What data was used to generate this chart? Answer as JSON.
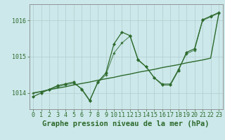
{
  "bg_color": "#cce8ea",
  "line_color": "#2d6a2d",
  "grid_color": "#b0cccc",
  "xlabel": "Graphe pression niveau de la mer (hPa)",
  "xlabel_fontsize": 7.5,
  "tick_fontsize": 6,
  "xlim": [
    -0.5,
    23.5
  ],
  "ylim": [
    1013.55,
    1016.45
  ],
  "yticks": [
    1014,
    1015,
    1016
  ],
  "xticks": [
    0,
    1,
    2,
    3,
    4,
    5,
    6,
    7,
    8,
    9,
    10,
    11,
    12,
    13,
    14,
    15,
    16,
    17,
    18,
    19,
    20,
    21,
    22,
    23
  ],
  "line_fluctuating": [
    1013.9,
    1014.0,
    1014.1,
    1014.2,
    1014.25,
    1014.3,
    1014.1,
    1013.78,
    1014.3,
    1014.55,
    1015.35,
    1015.68,
    1015.58,
    1014.92,
    1014.72,
    1014.42,
    1014.22,
    1014.22,
    1014.62,
    1015.12,
    1015.22,
    1016.02,
    1016.12,
    1016.22
  ],
  "line_trend": [
    1014.0,
    1014.04,
    1014.09,
    1014.13,
    1014.17,
    1014.22,
    1014.26,
    1014.3,
    1014.35,
    1014.39,
    1014.43,
    1014.48,
    1014.52,
    1014.57,
    1014.61,
    1014.65,
    1014.7,
    1014.74,
    1014.78,
    1014.83,
    1014.87,
    1014.91,
    1014.96,
    1016.18
  ],
  "line_smooth": [
    1014.0,
    1014.03,
    1014.1,
    1014.17,
    1014.22,
    1014.27,
    1014.12,
    1013.8,
    1014.28,
    1014.5,
    1015.1,
    1015.38,
    1015.57,
    1014.9,
    1014.72,
    1014.42,
    1014.25,
    1014.25,
    1014.65,
    1015.08,
    1015.18,
    1016.0,
    1016.1,
    1016.2
  ]
}
